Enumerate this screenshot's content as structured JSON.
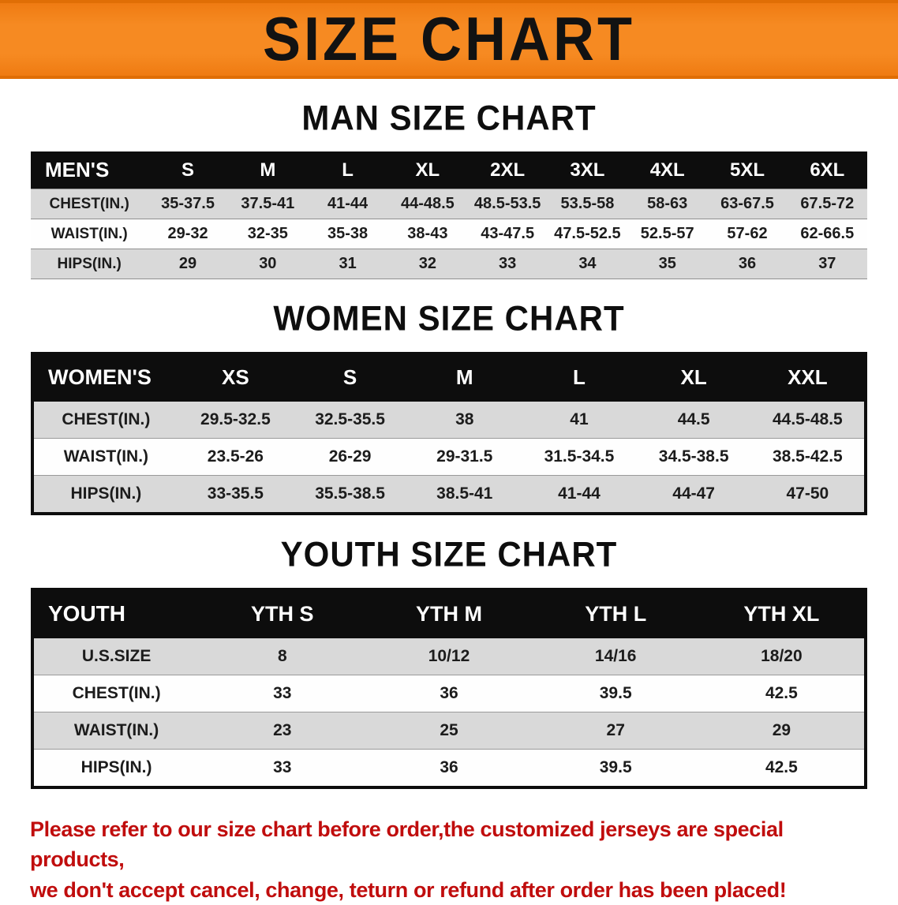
{
  "banner": {
    "title": "SIZE CHART"
  },
  "colors": {
    "banner_orange": "#f68a22",
    "table_header_black": "#0d0d0d",
    "row_stripe_gray": "#d9d9d9",
    "disclaimer_red": "#c00d0d"
  },
  "men": {
    "heading": "MAN SIZE CHART",
    "table": {
      "header": [
        "MEN'S",
        "S",
        "M",
        "L",
        "XL",
        "2XL",
        "3XL",
        "4XL",
        "5XL",
        "6XL"
      ],
      "rows": [
        [
          "CHEST(IN.)",
          "35-37.5",
          "37.5-41",
          "41-44",
          "44-48.5",
          "48.5-53.5",
          "53.5-58",
          "58-63",
          "63-67.5",
          "67.5-72"
        ],
        [
          "WAIST(IN.)",
          "29-32",
          "32-35",
          "35-38",
          "38-43",
          "43-47.5",
          "47.5-52.5",
          "52.5-57",
          "57-62",
          "62-66.5"
        ],
        [
          "HIPS(IN.)",
          "29",
          "30",
          "31",
          "32",
          "33",
          "34",
          "35",
          "36",
          "37"
        ]
      ]
    }
  },
  "women": {
    "heading": "WOMEN SIZE CHART",
    "table": {
      "header": [
        "WOMEN'S",
        "XS",
        "S",
        "M",
        "L",
        "XL",
        "XXL"
      ],
      "rows": [
        [
          "CHEST(IN.)",
          "29.5-32.5",
          "32.5-35.5",
          "38",
          "41",
          "44.5",
          "44.5-48.5"
        ],
        [
          "WAIST(IN.)",
          "23.5-26",
          "26-29",
          "29-31.5",
          "31.5-34.5",
          "34.5-38.5",
          "38.5-42.5"
        ],
        [
          "HIPS(IN.)",
          "33-35.5",
          "35.5-38.5",
          "38.5-41",
          "41-44",
          "44-47",
          "47-50"
        ]
      ]
    }
  },
  "youth": {
    "heading": "YOUTH SIZE CHART",
    "table": {
      "header": [
        "YOUTH",
        "YTH S",
        "YTH M",
        "YTH L",
        "YTH XL"
      ],
      "rows": [
        [
          "U.S.SIZE",
          "8",
          "10/12",
          "14/16",
          "18/20"
        ],
        [
          "CHEST(IN.)",
          "33",
          "36",
          "39.5",
          "42.5"
        ],
        [
          "WAIST(IN.)",
          "23",
          "25",
          "27",
          "29"
        ],
        [
          "HIPS(IN.)",
          "33",
          "36",
          "39.5",
          "42.5"
        ]
      ]
    }
  },
  "disclaimer": {
    "line1": "Please refer to our size chart before order,the customized jerseys are special products,",
    "line2": "we don't accept cancel, change, teturn or refund after order has been placed!"
  }
}
